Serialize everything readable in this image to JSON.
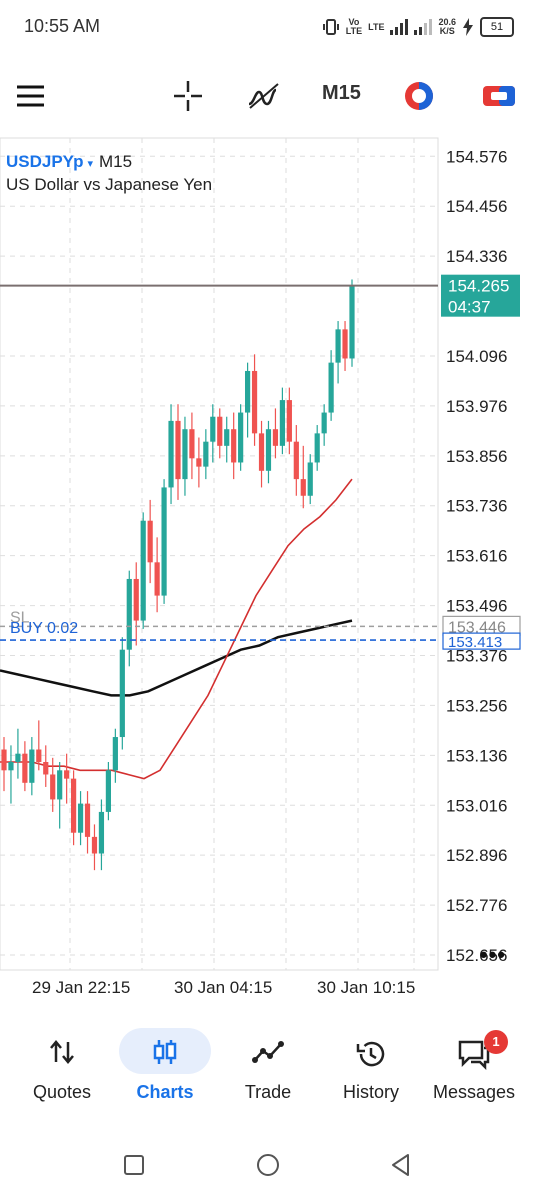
{
  "status": {
    "time": "10:55 AM",
    "net1_top": "Vo",
    "net1_bottom": "LTE",
    "net2": "LTE",
    "speed_top": "20.6",
    "speed_bottom": "K/S",
    "battery": "51"
  },
  "toolbar": {
    "timeframe": "M15",
    "icons": [
      "menu-icon",
      "crosshair-icon",
      "indicators-icon",
      "timeframe-button",
      "chart-color-icon",
      "one-click-trading-icon"
    ]
  },
  "chart": {
    "symbol": "USDJPYp",
    "caret": "▾",
    "timeframe": "M15",
    "description": "US Dollar vs Japanese Yen",
    "price_labels": [
      "154.576",
      "154.456",
      "154.336",
      "154.096",
      "153.976",
      "153.856",
      "153.736",
      "153.616",
      "153.496",
      "153.376",
      "153.256",
      "153.136",
      "153.016",
      "152.896",
      "152.776",
      "152.656"
    ],
    "current_price": "154.265",
    "countdown": "04:37",
    "sl_label": "SL",
    "sl_price": "153.446",
    "buy_label": "BUY 0.02",
    "buy_price": "153.413",
    "time_labels": [
      "29 Jan 22:15",
      "30 Jan 04:15",
      "30 Jan 10:15"
    ],
    "more": "•••",
    "colors": {
      "bull": "#26a69a",
      "bear": "#ef5350",
      "ma_fast": "#d32f2f",
      "ma_slow": "#111111",
      "buy_line": "#1e63d6",
      "sl_line": "#9e9e9e",
      "price_line": "#7a6f6f"
    }
  },
  "chart_data": {
    "type": "candlestick",
    "title": "USDJPYp M15",
    "ylim": [
      152.62,
      154.62
    ],
    "candles": [
      [
        153.15,
        153.18,
        153.05,
        153.1
      ],
      [
        153.1,
        153.16,
        153.02,
        153.12
      ],
      [
        153.12,
        153.2,
        153.08,
        153.14
      ],
      [
        153.14,
        153.17,
        153.05,
        153.07
      ],
      [
        153.07,
        153.18,
        153.04,
        153.15
      ],
      [
        153.15,
        153.22,
        153.1,
        153.12
      ],
      [
        153.12,
        153.16,
        153.06,
        153.09
      ],
      [
        153.09,
        153.13,
        153.0,
        153.03
      ],
      [
        153.03,
        153.12,
        152.96,
        153.1
      ],
      [
        153.1,
        153.14,
        153.02,
        153.08
      ],
      [
        153.08,
        153.1,
        152.92,
        152.95
      ],
      [
        152.95,
        153.05,
        152.92,
        153.02
      ],
      [
        153.02,
        153.05,
        152.9,
        152.94
      ],
      [
        152.94,
        152.97,
        152.86,
        152.9
      ],
      [
        152.9,
        153.03,
        152.86,
        153.0
      ],
      [
        153.0,
        153.12,
        152.98,
        153.1
      ],
      [
        153.1,
        153.2,
        153.07,
        153.18
      ],
      [
        153.18,
        153.42,
        153.15,
        153.39
      ],
      [
        153.39,
        153.58,
        153.35,
        153.56
      ],
      [
        153.56,
        153.6,
        153.4,
        153.46
      ],
      [
        153.46,
        153.72,
        153.44,
        153.7
      ],
      [
        153.7,
        153.75,
        153.55,
        153.6
      ],
      [
        153.6,
        153.66,
        153.48,
        153.52
      ],
      [
        153.52,
        153.8,
        153.5,
        153.78
      ],
      [
        153.78,
        153.98,
        153.74,
        153.94
      ],
      [
        153.94,
        153.98,
        153.75,
        153.8
      ],
      [
        153.8,
        153.95,
        153.76,
        153.92
      ],
      [
        153.92,
        153.96,
        153.8,
        153.85
      ],
      [
        153.85,
        153.9,
        153.78,
        153.83
      ],
      [
        153.83,
        153.92,
        153.8,
        153.89
      ],
      [
        153.89,
        153.98,
        153.84,
        153.95
      ],
      [
        153.95,
        153.97,
        153.85,
        153.88
      ],
      [
        153.88,
        153.95,
        153.84,
        153.92
      ],
      [
        153.92,
        153.96,
        153.8,
        153.84
      ],
      [
        153.84,
        153.98,
        153.82,
        153.96
      ],
      [
        153.96,
        154.08,
        153.9,
        154.06
      ],
      [
        154.06,
        154.1,
        153.88,
        153.91
      ],
      [
        153.91,
        153.94,
        153.78,
        153.82
      ],
      [
        153.82,
        153.94,
        153.79,
        153.92
      ],
      [
        153.92,
        153.97,
        153.85,
        153.88
      ],
      [
        153.88,
        154.02,
        153.86,
        153.99
      ],
      [
        153.99,
        154.02,
        153.86,
        153.89
      ],
      [
        153.89,
        153.93,
        153.76,
        153.8
      ],
      [
        153.8,
        153.88,
        153.73,
        153.76
      ],
      [
        153.76,
        153.86,
        153.74,
        153.84
      ],
      [
        153.84,
        153.93,
        153.82,
        153.91
      ],
      [
        153.91,
        153.98,
        153.88,
        153.96
      ],
      [
        153.96,
        154.11,
        153.94,
        154.08
      ],
      [
        154.08,
        154.18,
        154.03,
        154.16
      ],
      [
        154.16,
        154.18,
        154.06,
        154.09
      ],
      [
        154.09,
        154.28,
        154.07,
        154.265
      ]
    ],
    "ma_fast": [
      153.12,
      153.12,
      153.12,
      153.11,
      153.11,
      153.1,
      153.1,
      153.1,
      153.09,
      153.08,
      153.1,
      153.16,
      153.22,
      153.28,
      153.36,
      153.44,
      153.52,
      153.58,
      153.64,
      153.68,
      153.71,
      153.75,
      153.8
    ],
    "ma_slow": [
      153.34,
      153.33,
      153.32,
      153.31,
      153.3,
      153.29,
      153.28,
      153.28,
      153.29,
      153.31,
      153.33,
      153.35,
      153.37,
      153.39,
      153.4,
      153.42,
      153.43,
      153.44,
      153.45,
      153.46
    ]
  },
  "nav": {
    "items": [
      {
        "label": "Quotes"
      },
      {
        "label": "Charts"
      },
      {
        "label": "Trade"
      },
      {
        "label": "History"
      },
      {
        "label": "Messages",
        "badge": "1"
      }
    ]
  }
}
